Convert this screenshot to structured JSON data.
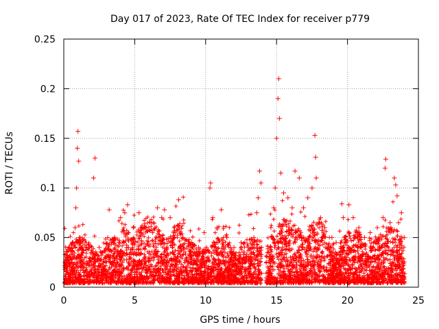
{
  "chart_data": {
    "type": "scatter",
    "title": "Day 017 of 2023, Rate Of TEC Index for receiver p779",
    "xlabel": "GPS time / hours",
    "ylabel": "ROTI / TECUs",
    "xlim": [
      0,
      25
    ],
    "ylim": [
      0,
      0.25
    ],
    "xticks": [
      0,
      5,
      10,
      15,
      20,
      25
    ],
    "xtick_labels": [
      "0",
      "5",
      "10",
      "15",
      "20",
      "25"
    ],
    "yticks": [
      0,
      0.05,
      0.1,
      0.15,
      0.2,
      0.25
    ],
    "ytick_labels": [
      "0",
      "0.05",
      "0.1",
      "0.15",
      "0.2",
      "0.25"
    ],
    "grid": true,
    "marker": "+",
    "marker_color": "#ff0000",
    "data_gaps_hours": [
      [
        13.95,
        14.25
      ],
      [
        24.1,
        25.0
      ]
    ],
    "series": [
      {
        "name": "ROTI",
        "points": [
          [
            0.1,
            0.02
          ],
          [
            0.25,
            0.03
          ],
          [
            0.4,
            0.04
          ],
          [
            0.6,
            0.045
          ],
          [
            0.8,
            0.06
          ],
          [
            0.85,
            0.08
          ],
          [
            0.9,
            0.1
          ],
          [
            0.95,
            0.14
          ],
          [
            1.0,
            0.157
          ],
          [
            1.05,
            0.127
          ],
          [
            1.1,
            0.05
          ],
          [
            1.6,
            0.04
          ],
          [
            2.1,
            0.11
          ],
          [
            2.2,
            0.13
          ],
          [
            2.5,
            0.04
          ],
          [
            3.1,
            0.05
          ],
          [
            3.2,
            0.078
          ],
          [
            3.6,
            0.05
          ],
          [
            4.0,
            0.07
          ],
          [
            4.3,
            0.075
          ],
          [
            4.5,
            0.083
          ],
          [
            4.9,
            0.06
          ],
          [
            5.3,
            0.075
          ],
          [
            5.8,
            0.06
          ],
          [
            6.3,
            0.065
          ],
          [
            6.6,
            0.08
          ],
          [
            6.9,
            0.07
          ],
          [
            7.1,
            0.078
          ],
          [
            7.5,
            0.07
          ],
          [
            7.8,
            0.06
          ],
          [
            8.1,
            0.088
          ],
          [
            8.4,
            0.05
          ],
          [
            9.0,
            0.045
          ],
          [
            9.5,
            0.04
          ],
          [
            9.9,
            0.055
          ],
          [
            10.3,
            0.1
          ],
          [
            10.35,
            0.105
          ],
          [
            10.5,
            0.07
          ],
          [
            10.8,
            0.06
          ],
          [
            11.1,
            0.078
          ],
          [
            11.5,
            0.05
          ],
          [
            12.0,
            0.04
          ],
          [
            12.5,
            0.045
          ],
          [
            13.0,
            0.04
          ],
          [
            13.4,
            0.05
          ],
          [
            13.6,
            0.075
          ],
          [
            13.7,
            0.09
          ],
          [
            13.8,
            0.117
          ],
          [
            13.9,
            0.105
          ],
          [
            14.6,
            0.06
          ],
          [
            14.8,
            0.08
          ],
          [
            14.9,
            0.1
          ],
          [
            15.0,
            0.15
          ],
          [
            15.1,
            0.19
          ],
          [
            15.15,
            0.21
          ],
          [
            15.2,
            0.17
          ],
          [
            15.3,
            0.115
          ],
          [
            15.5,
            0.095
          ],
          [
            15.8,
            0.09
          ],
          [
            16.1,
            0.08
          ],
          [
            16.3,
            0.117
          ],
          [
            16.6,
            0.11
          ],
          [
            16.9,
            0.08
          ],
          [
            17.2,
            0.09
          ],
          [
            17.5,
            0.1
          ],
          [
            17.7,
            0.153
          ],
          [
            17.75,
            0.131
          ],
          [
            17.8,
            0.11
          ],
          [
            18.1,
            0.07
          ],
          [
            18.4,
            0.06
          ],
          [
            18.9,
            0.05
          ],
          [
            19.2,
            0.045
          ],
          [
            19.6,
            0.084
          ],
          [
            19.7,
            0.07
          ],
          [
            20.1,
            0.083
          ],
          [
            20.4,
            0.07
          ],
          [
            20.8,
            0.06
          ],
          [
            21.2,
            0.05
          ],
          [
            21.6,
            0.055
          ],
          [
            22.1,
            0.06
          ],
          [
            22.5,
            0.07
          ],
          [
            22.65,
            0.12
          ],
          [
            22.7,
            0.129
          ],
          [
            23.0,
            0.065
          ],
          [
            23.3,
            0.11
          ],
          [
            23.4,
            0.103
          ],
          [
            23.5,
            0.092
          ],
          [
            23.6,
            0.065
          ],
          [
            23.8,
            0.075
          ],
          [
            24.0,
            0.05
          ]
        ]
      }
    ]
  }
}
